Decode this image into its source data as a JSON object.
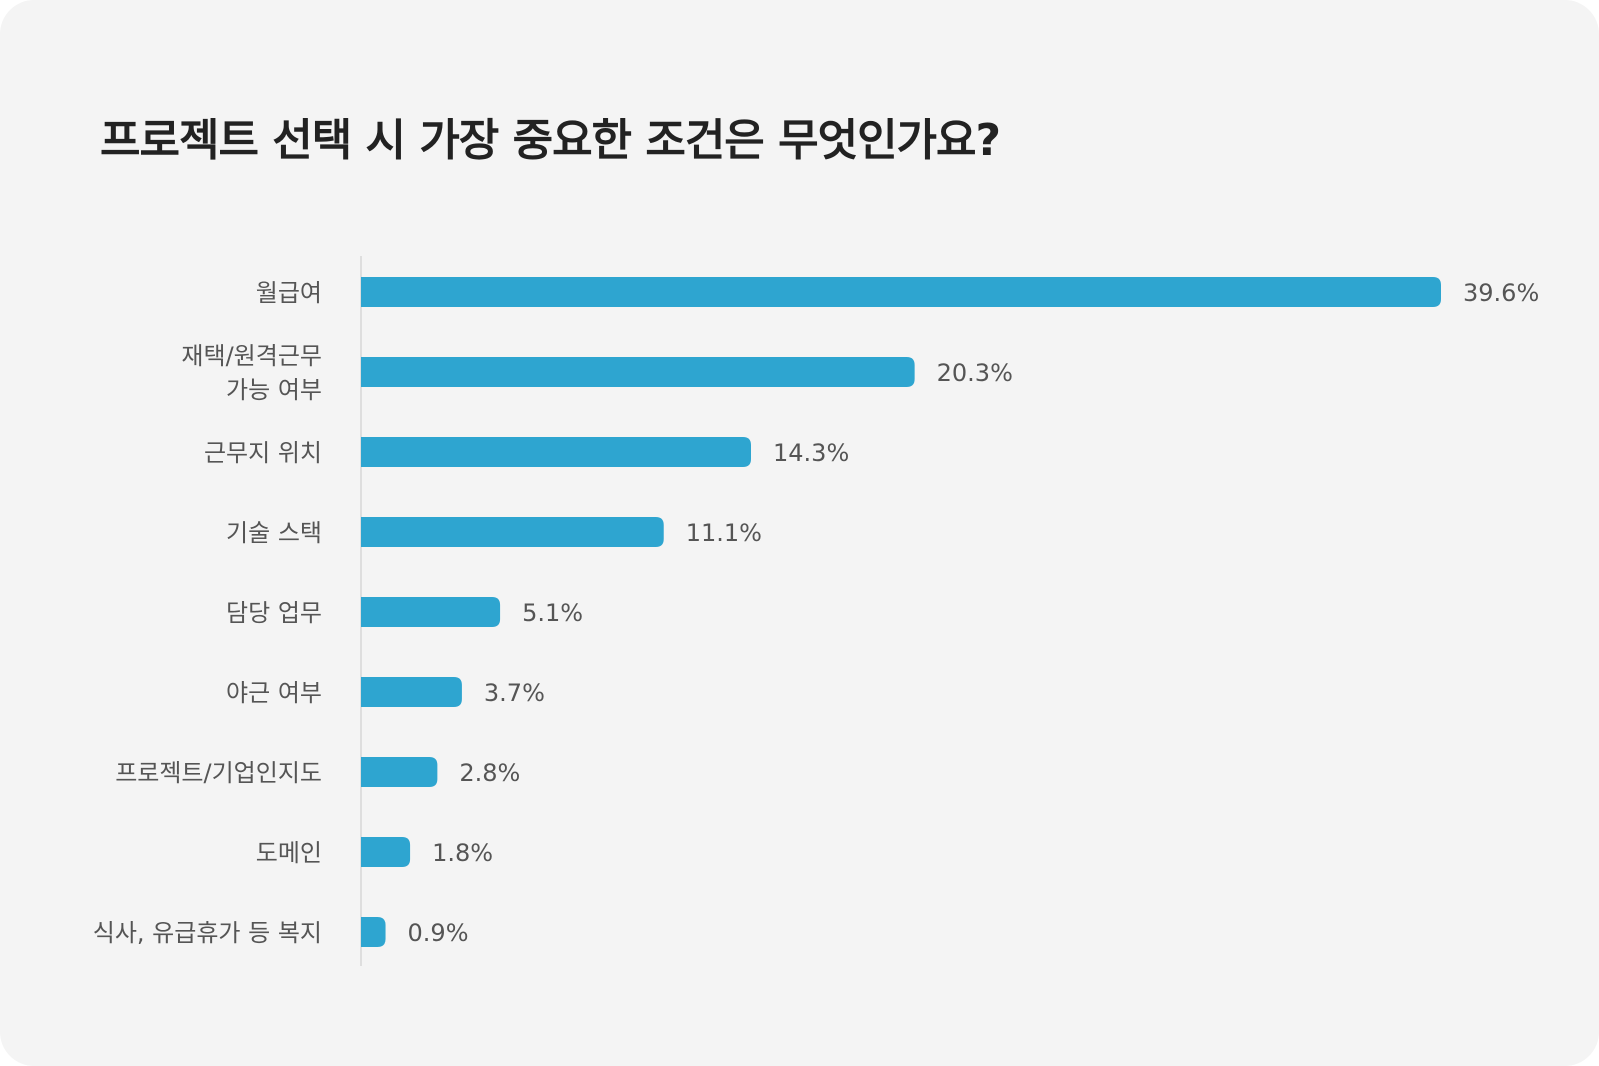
{
  "chart_data": {
    "type": "bar",
    "orientation": "horizontal",
    "title": "프로젝트 선택 시 가장 중요한 조건은 무엇인가요?",
    "categories": [
      [
        "월급여"
      ],
      [
        "재택/원격근무",
        "가능 여부"
      ],
      [
        "근무지 위치"
      ],
      [
        "기술 스택"
      ],
      [
        "담당 업무"
      ],
      [
        "야근 여부"
      ],
      [
        "프로젝트/기업인지도"
      ],
      [
        "도메인"
      ],
      [
        "식사, 유급휴가 등 복지"
      ]
    ],
    "values": [
      39.6,
      20.3,
      14.3,
      11.1,
      5.1,
      3.7,
      2.8,
      1.8,
      0.9
    ],
    "value_labels": [
      "39.6%",
      "20.3%",
      "14.3%",
      "11.1%",
      "5.1%",
      "3.7%",
      "2.8%",
      "1.8%",
      "0.9%"
    ],
    "xlim": [
      0,
      39.6
    ],
    "grid": false,
    "bar_color": "#2ea5d0",
    "background_color": "#f4f4f4"
  }
}
